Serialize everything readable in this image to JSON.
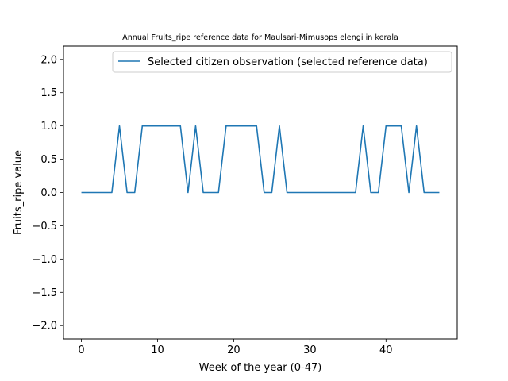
{
  "chart_data": {
    "type": "line",
    "title": "Annual Fruits_ripe reference data for Maulsari-Mimusops elengi in kerala",
    "xlabel": "Week of the year (0-47)",
    "ylabel": "Fruits_ripe value",
    "xlim": [
      -2.35,
      49.35
    ],
    "ylim": [
      -2.2,
      2.2
    ],
    "xticks": [
      0,
      10,
      20,
      30,
      40
    ],
    "yticks": [
      -2.0,
      -1.5,
      -1.0,
      -0.5,
      0.0,
      0.5,
      1.0,
      1.5,
      2.0
    ],
    "ytick_labels": [
      "−2.0",
      "−1.5",
      "−1.0",
      "−0.5",
      "0.0",
      "0.5",
      "1.0",
      "1.5",
      "2.0"
    ],
    "grid": false,
    "legend_position": "top-right",
    "series": [
      {
        "name": "Selected citizen observation (selected reference data)",
        "color": "#1f77b4",
        "x": [
          0,
          1,
          2,
          3,
          4,
          5,
          6,
          7,
          8,
          9,
          10,
          11,
          12,
          13,
          14,
          15,
          16,
          17,
          18,
          19,
          20,
          21,
          22,
          23,
          24,
          25,
          26,
          27,
          28,
          29,
          30,
          31,
          32,
          33,
          34,
          35,
          36,
          37,
          38,
          39,
          40,
          41,
          42,
          43,
          44,
          45,
          46,
          47
        ],
        "y": [
          0,
          0,
          0,
          0,
          0,
          1,
          0,
          0,
          1,
          1,
          1,
          1,
          1,
          1,
          0,
          1,
          0,
          0,
          0,
          1,
          1,
          1,
          1,
          1,
          0,
          0,
          1,
          0,
          0,
          0,
          0,
          0,
          0,
          0,
          0,
          0,
          0,
          1,
          0,
          0,
          1,
          1,
          1,
          0,
          1,
          0,
          0,
          0
        ]
      }
    ]
  }
}
